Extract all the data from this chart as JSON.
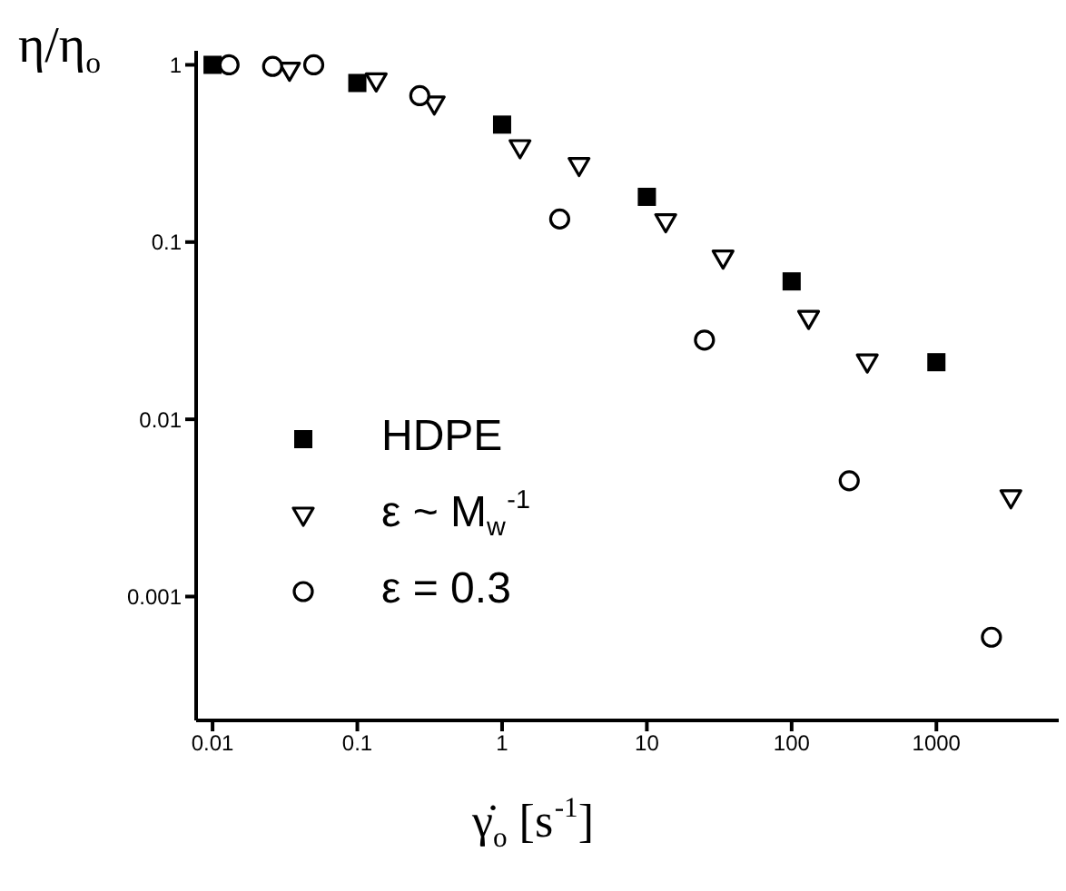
{
  "chart_data": {
    "type": "scatter",
    "xlabel": "γ̇$_{o}$ [s$^{-1}$]",
    "ylabel": "η/η$_{o}$",
    "log": "xy",
    "grid": false,
    "legend": "bottom left",
    "xlim": [
      0.0077,
      7000
    ],
    "ylim": [
      0.0002,
      1.2
    ],
    "xticks": [
      0.01,
      0.1,
      1,
      10,
      100,
      1000
    ],
    "yticks": [
      0.001,
      0.01,
      0.1,
      1
    ],
    "series": [
      {
        "name": "HDPE",
        "color": "#000000",
        "marker": "square",
        "x": [
          0.01,
          0.1,
          1,
          10,
          100,
          1000
        ],
        "values": [
          1.0,
          0.79,
          0.46,
          0.18,
          0.06,
          0.021
        ]
      },
      {
        "name": "ε ~ M$_{w}$$^{-1}$",
        "color": "#000000",
        "marker": "triangle",
        "x": [
          0.034,
          0.135,
          0.34,
          1.33,
          3.4,
          13.5,
          33.6,
          131,
          333,
          3270
        ],
        "values": [
          0.93,
          0.81,
          0.6,
          0.34,
          0.27,
          0.13,
          0.081,
          0.037,
          0.021,
          0.0036
        ]
      },
      {
        "name": "ε = 0.3",
        "color": "#000000",
        "marker": "circle",
        "x": [
          0.013,
          0.026,
          0.05,
          0.27,
          2.5,
          25,
          250,
          2400
        ],
        "values": [
          1.0,
          0.98,
          1.0,
          0.67,
          0.135,
          0.028,
          0.0045,
          0.00059
        ]
      }
    ]
  }
}
